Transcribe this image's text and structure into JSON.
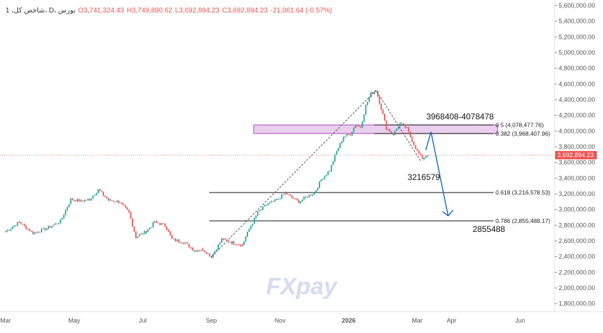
{
  "legend": {
    "symbol": "1 ،شاخص کل، D، بورس",
    "open": "O3,741,324.43",
    "high": "H3,749,890.62",
    "low": "L3,692,894.23",
    "close": "C3,692,894.23",
    "change": "-21,061.64 (-0.57%)"
  },
  "watermark": "FXpay",
  "colors": {
    "up": "#26a69a",
    "down": "#ef5350",
    "zone": "#e1bee7",
    "arrow": "#1565c0",
    "price_tag": "#ef5350"
  },
  "chart_data": {
    "type": "candlestick",
    "title": "",
    "ylim": [
      1700000,
      5600000
    ],
    "y_ticks": [
      "1,800,000.00",
      "2,000,000.00",
      "2,200,000.00",
      "2,400,000.00",
      "2,600,000.00",
      "2,800,000.00",
      "3,000,000.00",
      "3,200,000.00",
      "3,400,000.00",
      "3,600,000.00",
      "3,800,000.00",
      "4,000,000.00",
      "4,200,000.00",
      "4,400,000.00",
      "4,600,000.00",
      "4,800,000.00",
      "5,000,000.00",
      "5,200,000.00",
      "5,400,000.00",
      "5,600,000.00"
    ],
    "y_tick_values": [
      1800000,
      2000000,
      2200000,
      2400000,
      2600000,
      2800000,
      3000000,
      3200000,
      3400000,
      3600000,
      3800000,
      4000000,
      4200000,
      4400000,
      4600000,
      4800000,
      5000000,
      5200000,
      5400000,
      5600000
    ],
    "x_ticks": [
      "Mar",
      "May",
      "Jul",
      "Sep",
      "Nov",
      "2026",
      "Mar",
      "Apr",
      "Jun"
    ],
    "x_tick_months": [
      0,
      2,
      4,
      6,
      8,
      10,
      12,
      13,
      15
    ],
    "series": [
      {
        "m": 0.0,
        "v": 2720000
      },
      {
        "m": 0.4,
        "v": 2840000
      },
      {
        "m": 0.8,
        "v": 2700000
      },
      {
        "m": 1.2,
        "v": 2760000
      },
      {
        "m": 1.6,
        "v": 2850000
      },
      {
        "m": 1.9,
        "v": 3130000
      },
      {
        "m": 2.2,
        "v": 3110000
      },
      {
        "m": 2.45,
        "v": 3130000
      },
      {
        "m": 2.7,
        "v": 3250000
      },
      {
        "m": 3.0,
        "v": 3120000
      },
      {
        "m": 3.3,
        "v": 3100000
      },
      {
        "m": 3.6,
        "v": 2960000
      },
      {
        "m": 3.8,
        "v": 2650000
      },
      {
        "m": 4.1,
        "v": 2720000
      },
      {
        "m": 4.35,
        "v": 2840000
      },
      {
        "m": 4.65,
        "v": 2800000
      },
      {
        "m": 4.85,
        "v": 2620000
      },
      {
        "m": 5.2,
        "v": 2580000
      },
      {
        "m": 5.5,
        "v": 2480000
      },
      {
        "m": 5.75,
        "v": 2490000
      },
      {
        "m": 6.0,
        "v": 2400000
      },
      {
        "m": 6.3,
        "v": 2620000
      },
      {
        "m": 6.6,
        "v": 2580000
      },
      {
        "m": 6.9,
        "v": 2550000
      },
      {
        "m": 7.1,
        "v": 2750000
      },
      {
        "m": 7.35,
        "v": 2960000
      },
      {
        "m": 7.6,
        "v": 3060000
      },
      {
        "m": 7.9,
        "v": 3120000
      },
      {
        "m": 8.15,
        "v": 3210000
      },
      {
        "m": 8.35,
        "v": 3150000
      },
      {
        "m": 8.55,
        "v": 3100000
      },
      {
        "m": 8.8,
        "v": 3170000
      },
      {
        "m": 9.0,
        "v": 3210000
      },
      {
        "m": 9.2,
        "v": 3380000
      },
      {
        "m": 9.45,
        "v": 3500000
      },
      {
        "m": 9.65,
        "v": 3740000
      },
      {
        "m": 9.85,
        "v": 3930000
      },
      {
        "m": 10.05,
        "v": 3960000
      },
      {
        "m": 10.2,
        "v": 4080000
      },
      {
        "m": 10.35,
        "v": 4050000
      },
      {
        "m": 10.5,
        "v": 4320000
      },
      {
        "m": 10.65,
        "v": 4480000
      },
      {
        "m": 10.8,
        "v": 4520000
      },
      {
        "m": 10.95,
        "v": 4290000
      },
      {
        "m": 11.1,
        "v": 4040000
      },
      {
        "m": 11.3,
        "v": 3960000
      },
      {
        "m": 11.5,
        "v": 4100000
      },
      {
        "m": 11.7,
        "v": 4030000
      },
      {
        "m": 11.85,
        "v": 3880000
      },
      {
        "m": 12.0,
        "v": 3740000
      },
      {
        "m": 12.15,
        "v": 3650000
      },
      {
        "m": 12.35,
        "v": 3720000
      }
    ],
    "fib_levels": [
      {
        "ratio": "0.5",
        "label": "0.5 (4,078,477.76)",
        "value": 4078477.76
      },
      {
        "ratio": "0.382",
        "label": "0.382 (3,968,407.96)",
        "value": 3968407.96
      },
      {
        "ratio": "0.618",
        "label": "0.618 (3,216,578.53)",
        "value": 3216578.53
      },
      {
        "ratio": "0.786",
        "label": "0.786 (2,855,488.17)",
        "value": 2855488.17
      }
    ],
    "zone": {
      "label": "3968408-4078478",
      "low": 3968408,
      "high": 4078478
    },
    "annotations": [
      {
        "text": "3216579",
        "value": 3216579
      },
      {
        "text": "2855488",
        "value": 2855488
      }
    ],
    "last_price": {
      "value": 3692894.23,
      "label": "3,692,894.23"
    },
    "arrow": {
      "from_month": 12.4,
      "from_value": 3990000,
      "to_month": 12.9,
      "to_value": 2920000
    }
  }
}
